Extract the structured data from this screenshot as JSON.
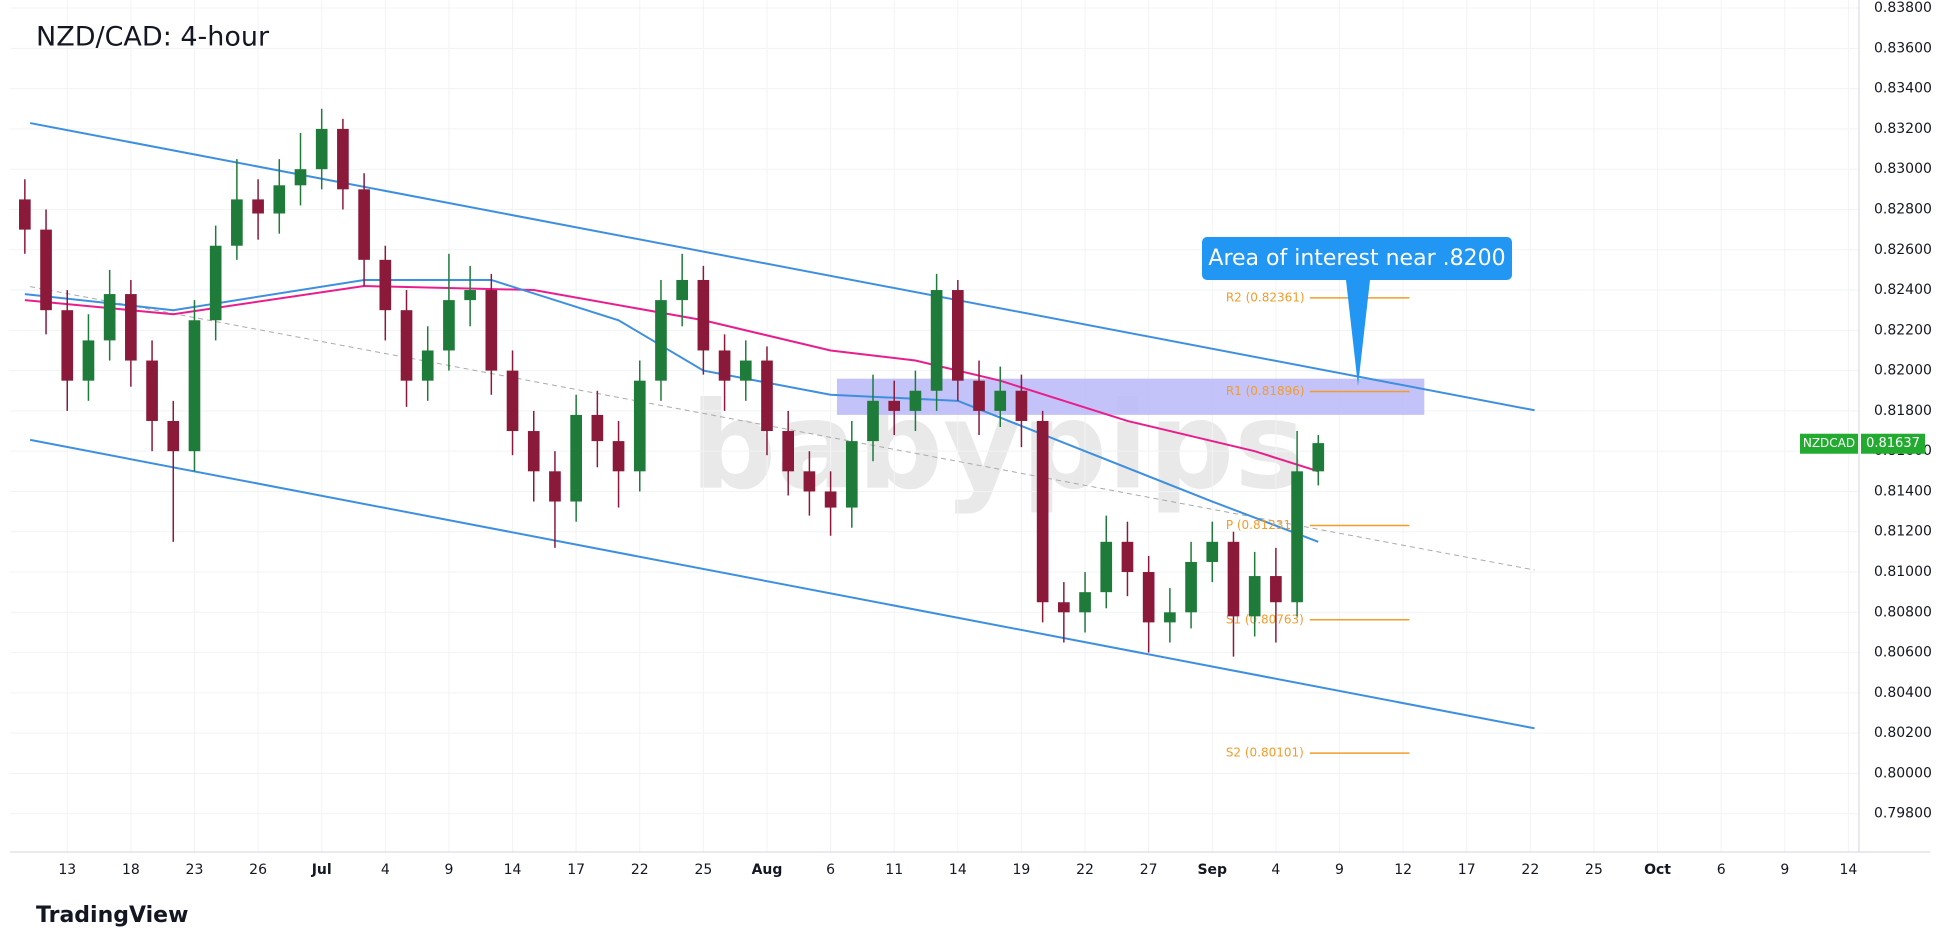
{
  "chart_data": {
    "type": "candlestick",
    "title": "NZD/CAD: 4-hour",
    "symbol": "NZDCAD",
    "last_price": 0.81637,
    "brand": "TradingView",
    "watermark": "babypips",
    "annotation": "Area of interest near .8200",
    "up_color": "#1e7b3a",
    "down_color": "#8b1a3a",
    "xlim": [
      -2.7,
      84.5
    ],
    "ylim": [
      0.7961,
      0.8384
    ],
    "xticks": [
      {
        "value": 0,
        "label": "13"
      },
      {
        "value": 3,
        "label": "18"
      },
      {
        "value": 6,
        "label": "23"
      },
      {
        "value": 9,
        "label": "26"
      },
      {
        "value": 12,
        "label": "Jul"
      },
      {
        "value": 15,
        "label": "4"
      },
      {
        "value": 18,
        "label": "9"
      },
      {
        "value": 21,
        "label": "14"
      },
      {
        "value": 24,
        "label": "17"
      },
      {
        "value": 27,
        "label": "22"
      },
      {
        "value": 30,
        "label": "25"
      },
      {
        "value": 33,
        "label": "Aug"
      },
      {
        "value": 36,
        "label": "6"
      },
      {
        "value": 39,
        "label": "11"
      },
      {
        "value": 42,
        "label": "14"
      },
      {
        "value": 45,
        "label": "19"
      },
      {
        "value": 48,
        "label": "22"
      },
      {
        "value": 51,
        "label": "27"
      },
      {
        "value": 54,
        "label": "Sep"
      },
      {
        "value": 57,
        "label": "4"
      },
      {
        "value": 60,
        "label": "9"
      },
      {
        "value": 63,
        "label": "12"
      },
      {
        "value": 66,
        "label": "17"
      },
      {
        "value": 69,
        "label": "22"
      },
      {
        "value": 72,
        "label": "25"
      },
      {
        "value": 75,
        "label": "Oct"
      },
      {
        "value": 78,
        "label": "6"
      },
      {
        "value": 81,
        "label": "9"
      },
      {
        "value": 84,
        "label": "14"
      }
    ],
    "yticks": [
      {
        "value": 0.798,
        "label": "0.79800"
      },
      {
        "value": 0.8,
        "label": "0.80000"
      },
      {
        "value": 0.802,
        "label": "0.80200"
      },
      {
        "value": 0.804,
        "label": "0.80400"
      },
      {
        "value": 0.806,
        "label": "0.80600"
      },
      {
        "value": 0.808,
        "label": "0.80800"
      },
      {
        "value": 0.81,
        "label": "0.81000"
      },
      {
        "value": 0.812,
        "label": "0.81200"
      },
      {
        "value": 0.814,
        "label": "0.81400"
      },
      {
        "value": 0.816,
        "label": "0.81600"
      },
      {
        "value": 0.818,
        "label": "0.81800"
      },
      {
        "value": 0.82,
        "label": "0.82000"
      },
      {
        "value": 0.822,
        "label": "0.82200"
      },
      {
        "value": 0.824,
        "label": "0.82400"
      },
      {
        "value": 0.826,
        "label": "0.82600"
      },
      {
        "value": 0.828,
        "label": "0.82800"
      },
      {
        "value": 0.83,
        "label": "0.83000"
      },
      {
        "value": 0.832,
        "label": "0.83200"
      },
      {
        "value": 0.834,
        "label": "0.83400"
      },
      {
        "value": 0.836,
        "label": "0.83600"
      },
      {
        "value": 0.838,
        "label": "0.83800"
      }
    ],
    "x": [
      -2,
      -1,
      0,
      1,
      2,
      3,
      4,
      5,
      6,
      7,
      8,
      9,
      10,
      11,
      12,
      13,
      14,
      15,
      16,
      17,
      18,
      19,
      20,
      21,
      22,
      23,
      24,
      25,
      26,
      27,
      28,
      29,
      30,
      31,
      32,
      33,
      34,
      35,
      36,
      37,
      38,
      39,
      40,
      41,
      42,
      43,
      44,
      45,
      46,
      47,
      48,
      49,
      50,
      51,
      52,
      53,
      54,
      55,
      56,
      57,
      58,
      59
    ],
    "open": [
      0.8285,
      0.827,
      0.823,
      0.8195,
      0.8215,
      0.8238,
      0.8205,
      0.8175,
      0.816,
      0.8225,
      0.8262,
      0.8285,
      0.8278,
      0.8292,
      0.83,
      0.832,
      0.829,
      0.8255,
      0.823,
      0.8195,
      0.821,
      0.8235,
      0.824,
      0.82,
      0.817,
      0.815,
      0.8135,
      0.8178,
      0.8165,
      0.815,
      0.8195,
      0.8235,
      0.8245,
      0.821,
      0.8195,
      0.8205,
      0.817,
      0.815,
      0.814,
      0.8132,
      0.8165,
      0.8185,
      0.818,
      0.819,
      0.824,
      0.8195,
      0.818,
      0.819,
      0.8175,
      0.8085,
      0.808,
      0.809,
      0.8115,
      0.81,
      0.8075,
      0.808,
      0.8105,
      0.8115,
      0.8078,
      0.8098,
      0.8085,
      0.815
    ],
    "high": [
      0.8295,
      0.828,
      0.824,
      0.8228,
      0.825,
      0.8245,
      0.8215,
      0.8185,
      0.8235,
      0.8272,
      0.8305,
      0.8295,
      0.8305,
      0.8318,
      0.833,
      0.8325,
      0.8298,
      0.8262,
      0.824,
      0.8222,
      0.8258,
      0.8252,
      0.8248,
      0.821,
      0.818,
      0.816,
      0.8188,
      0.819,
      0.8175,
      0.8205,
      0.8245,
      0.8258,
      0.8252,
      0.8218,
      0.8215,
      0.8212,
      0.818,
      0.816,
      0.815,
      0.8175,
      0.8198,
      0.8195,
      0.82,
      0.8248,
      0.8245,
      0.8205,
      0.8202,
      0.8198,
      0.818,
      0.8095,
      0.81,
      0.8128,
      0.8125,
      0.8108,
      0.8092,
      0.8115,
      0.8125,
      0.812,
      0.811,
      0.8112,
      0.817,
      0.8168
    ],
    "low": [
      0.8258,
      0.8218,
      0.818,
      0.8185,
      0.8205,
      0.8192,
      0.816,
      0.8115,
      0.815,
      0.8215,
      0.8255,
      0.8265,
      0.8268,
      0.8282,
      0.829,
      0.828,
      0.8242,
      0.8215,
      0.8182,
      0.8185,
      0.82,
      0.8222,
      0.8188,
      0.8158,
      0.8135,
      0.8112,
      0.8125,
      0.8152,
      0.8132,
      0.814,
      0.8185,
      0.8222,
      0.8198,
      0.818,
      0.8185,
      0.8158,
      0.8138,
      0.8128,
      0.8118,
      0.8122,
      0.8155,
      0.8168,
      0.817,
      0.818,
      0.8185,
      0.8168,
      0.8172,
      0.8162,
      0.8075,
      0.8065,
      0.807,
      0.8082,
      0.8088,
      0.806,
      0.8065,
      0.8072,
      0.8095,
      0.8058,
      0.8068,
      0.8065,
      0.8078,
      0.8143
    ],
    "close": [
      0.827,
      0.823,
      0.8195,
      0.8215,
      0.8238,
      0.8205,
      0.8175,
      0.816,
      0.8225,
      0.8262,
      0.8285,
      0.8278,
      0.8292,
      0.83,
      0.832,
      0.829,
      0.8255,
      0.823,
      0.8195,
      0.821,
      0.8235,
      0.824,
      0.82,
      0.817,
      0.815,
      0.8135,
      0.8178,
      0.8165,
      0.815,
      0.8195,
      0.8235,
      0.8245,
      0.821,
      0.8195,
      0.8205,
      0.817,
      0.815,
      0.814,
      0.8132,
      0.8165,
      0.8185,
      0.818,
      0.819,
      0.824,
      0.8195,
      0.818,
      0.819,
      0.8175,
      0.8085,
      0.808,
      0.809,
      0.8115,
      0.81,
      0.8075,
      0.808,
      0.8105,
      0.8115,
      0.8078,
      0.8098,
      0.8085,
      0.815,
      0.8164
    ],
    "overlays": [
      {
        "color": "#e91e8c",
        "x": [
          -2,
          5,
          14,
          22,
          30,
          36,
          40,
          44,
          50,
          56,
          59
        ],
        "values": [
          0.8235,
          0.8228,
          0.8242,
          0.824,
          0.8225,
          0.821,
          0.8205,
          0.8195,
          0.8175,
          0.816,
          0.815
        ]
      },
      {
        "color": "#3d8fe0",
        "x": [
          -2,
          5,
          14,
          20,
          26,
          30,
          36,
          42,
          48,
          54,
          59
        ],
        "values": [
          0.8238,
          0.823,
          0.8245,
          0.8245,
          0.8225,
          0.82,
          0.8188,
          0.8185,
          0.816,
          0.8135,
          0.8115
        ]
      }
    ],
    "trendlines": [
      {
        "color": "#3d8fe0",
        "dashed": false,
        "x": [
          -1.75,
          69.2
        ],
        "y": [
          0.83229,
          0.81803
        ]
      },
      {
        "color": "#3d8fe0",
        "dashed": false,
        "x": [
          -1.75,
          69.2
        ],
        "y": [
          0.81656,
          0.80224
        ]
      },
      {
        "color": "#aaaaaa",
        "dashed": true,
        "x": [
          -1.75,
          69.2
        ],
        "y": [
          0.82417,
          0.8101
        ]
      }
    ],
    "zone": {
      "color": "#b8b8f8",
      "x": [
        36.3,
        64.0
      ],
      "y": [
        0.8178,
        0.8196
      ]
    },
    "level_x": [
      58.6,
      63.3
    ],
    "levels": [
      {
        "label": "R2 (0.82361)",
        "value": 0.82361,
        "color": "#f39c2b"
      },
      {
        "label": "R1 (0.81896)",
        "value": 0.81896,
        "color": "#f39c2b"
      },
      {
        "label": "P (0.81231)",
        "value": 0.81231,
        "color": "#f39c2b"
      },
      {
        "label": "S1 (0.80763)",
        "value": 0.80763,
        "color": "#f39c2b"
      },
      {
        "label": "S2 (0.80101)",
        "value": 0.80101,
        "color": "#f39c2b"
      }
    ]
  }
}
